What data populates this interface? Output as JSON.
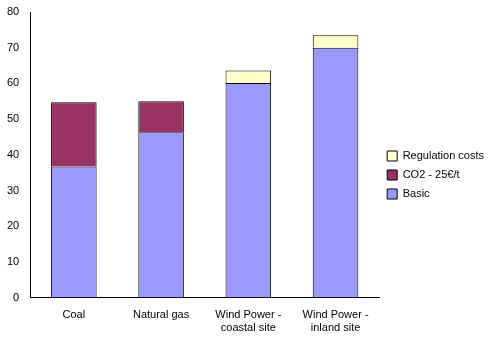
{
  "chart_data": {
    "type": "bar",
    "stacked": true,
    "grid": false,
    "legend": "right",
    "categories": [
      "Coal",
      "Natural gas",
      "Wind Power - coastal site",
      "Wind Power - inland site"
    ],
    "series": [
      {
        "name": "Basic",
        "color": "#9999ff",
        "values": [
          36.7,
          46.3,
          60.1,
          70.0
        ]
      },
      {
        "name": "CO2 - 25€/t",
        "color": "#993366",
        "values": [
          18.0,
          8.7,
          null,
          null
        ]
      },
      {
        "name": "Regulation costs",
        "color": "#ffffcc",
        "values": [
          null,
          null,
          3.5,
          3.5
        ]
      }
    ],
    "ylim": [
      0,
      80
    ],
    "yticks": [
      0,
      10,
      20,
      30,
      40,
      50,
      60,
      70,
      80
    ]
  }
}
